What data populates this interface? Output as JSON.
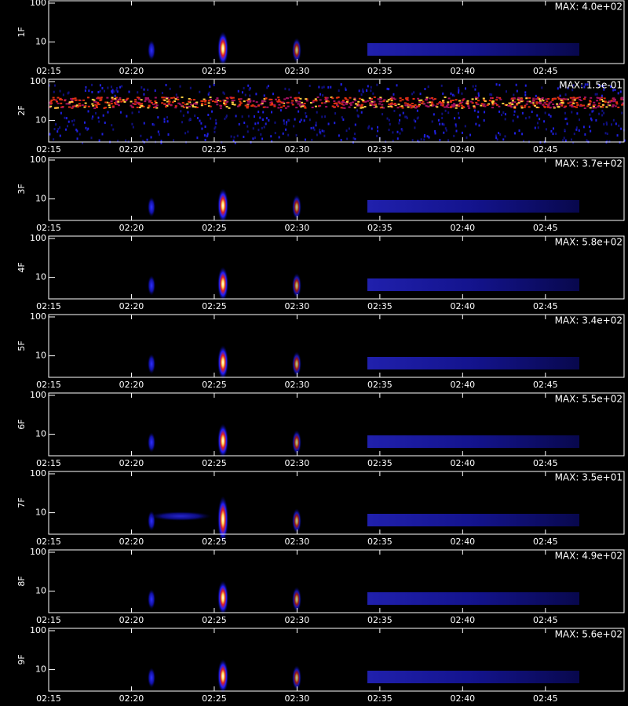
{
  "chart_data": [
    {
      "type": "heatmap",
      "ylabel": "1F",
      "annotation": "MAX: 4.0e+02",
      "log_y": true,
      "xlim": [
        0,
        34.75
      ],
      "ylim": [
        2.8,
        115
      ],
      "yticks": [
        10,
        100
      ],
      "xticks": [
        {
          "value": 0,
          "label": "02:15"
        },
        {
          "value": 5,
          "label": "02:20"
        },
        {
          "value": 10,
          "label": "02:25"
        },
        {
          "value": 15,
          "label": "02:30"
        },
        {
          "value": 20,
          "label": "02:35"
        },
        {
          "value": 25,
          "label": "02:40"
        },
        {
          "value": 30,
          "label": "02:45"
        }
      ]
    },
    {
      "type": "heatmap",
      "ylabel": "2F",
      "annotation": "MAX: 1.5e-01",
      "log_y": true,
      "xlim": [
        0,
        34.75
      ],
      "ylim": [
        2.8,
        115
      ],
      "yticks": [
        10,
        100
      ],
      "xticks": [
        {
          "value": 0,
          "label": "02:15"
        },
        {
          "value": 5,
          "label": "02:20"
        },
        {
          "value": 10,
          "label": "02:25"
        },
        {
          "value": 15,
          "label": "02:30"
        },
        {
          "value": 20,
          "label": "02:35"
        },
        {
          "value": 25,
          "label": "02:40"
        },
        {
          "value": 30,
          "label": "02:45"
        }
      ]
    },
    {
      "type": "heatmap",
      "ylabel": "3F",
      "annotation": "MAX: 3.7e+02",
      "log_y": true,
      "xlim": [
        0,
        34.75
      ],
      "ylim": [
        2.8,
        115
      ],
      "yticks": [
        10,
        100
      ],
      "xticks": [
        {
          "value": 0,
          "label": "02:15"
        },
        {
          "value": 5,
          "label": "02:20"
        },
        {
          "value": 10,
          "label": "02:25"
        },
        {
          "value": 15,
          "label": "02:30"
        },
        {
          "value": 20,
          "label": "02:35"
        },
        {
          "value": 25,
          "label": "02:40"
        },
        {
          "value": 30,
          "label": "02:45"
        }
      ]
    },
    {
      "type": "heatmap",
      "ylabel": "4F",
      "annotation": "MAX: 5.8e+02",
      "log_y": true,
      "xlim": [
        0,
        34.75
      ],
      "ylim": [
        2.8,
        115
      ],
      "yticks": [
        10,
        100
      ],
      "xticks": [
        {
          "value": 0,
          "label": "02:15"
        },
        {
          "value": 5,
          "label": "02:20"
        },
        {
          "value": 10,
          "label": "02:25"
        },
        {
          "value": 15,
          "label": "02:30"
        },
        {
          "value": 20,
          "label": "02:35"
        },
        {
          "value": 25,
          "label": "02:40"
        },
        {
          "value": 30,
          "label": "02:45"
        }
      ]
    },
    {
      "type": "heatmap",
      "ylabel": "5F",
      "annotation": "MAX: 3.4e+02",
      "log_y": true,
      "xlim": [
        0,
        34.75
      ],
      "ylim": [
        2.8,
        115
      ],
      "yticks": [
        10,
        100
      ],
      "xticks": [
        {
          "value": 0,
          "label": "02:15"
        },
        {
          "value": 5,
          "label": "02:20"
        },
        {
          "value": 10,
          "label": "02:25"
        },
        {
          "value": 15,
          "label": "02:30"
        },
        {
          "value": 20,
          "label": "02:35"
        },
        {
          "value": 25,
          "label": "02:40"
        },
        {
          "value": 30,
          "label": "02:45"
        }
      ]
    },
    {
      "type": "heatmap",
      "ylabel": "6F",
      "annotation": "MAX: 5.5e+02",
      "log_y": true,
      "xlim": [
        0,
        34.75
      ],
      "ylim": [
        2.8,
        115
      ],
      "yticks": [
        10,
        100
      ],
      "xticks": [
        {
          "value": 0,
          "label": "02:15"
        },
        {
          "value": 5,
          "label": "02:20"
        },
        {
          "value": 10,
          "label": "02:25"
        },
        {
          "value": 15,
          "label": "02:30"
        },
        {
          "value": 20,
          "label": "02:35"
        },
        {
          "value": 25,
          "label": "02:40"
        },
        {
          "value": 30,
          "label": "02:45"
        }
      ]
    },
    {
      "type": "heatmap",
      "ylabel": "7F",
      "annotation": "MAX: 3.5e+01",
      "log_y": true,
      "xlim": [
        0,
        34.75
      ],
      "ylim": [
        2.8,
        115
      ],
      "yticks": [
        10,
        100
      ],
      "xticks": [
        {
          "value": 0,
          "label": "02:15"
        },
        {
          "value": 5,
          "label": "02:20"
        },
        {
          "value": 10,
          "label": "02:25"
        },
        {
          "value": 15,
          "label": "02:30"
        },
        {
          "value": 20,
          "label": "02:35"
        },
        {
          "value": 25,
          "label": "02:40"
        },
        {
          "value": 30,
          "label": "02:45"
        }
      ]
    },
    {
      "type": "heatmap",
      "ylabel": "8F",
      "annotation": "MAX: 4.9e+02",
      "log_y": true,
      "xlim": [
        0,
        34.75
      ],
      "ylim": [
        2.8,
        115
      ],
      "yticks": [
        10,
        100
      ],
      "xticks": [
        {
          "value": 0,
          "label": "02:15"
        },
        {
          "value": 5,
          "label": "02:20"
        },
        {
          "value": 10,
          "label": "02:25"
        },
        {
          "value": 15,
          "label": "02:30"
        },
        {
          "value": 20,
          "label": "02:35"
        },
        {
          "value": 25,
          "label": "02:40"
        },
        {
          "value": 30,
          "label": "02:45"
        }
      ]
    },
    {
      "type": "heatmap",
      "ylabel": "9F",
      "annotation": "MAX: 5.6e+02",
      "log_y": true,
      "xlim": [
        0,
        34.75
      ],
      "ylim": [
        2.8,
        115
      ],
      "yticks": [
        10,
        100
      ],
      "xticks": [
        {
          "value": 0,
          "label": "02:15"
        },
        {
          "value": 5,
          "label": "02:20"
        },
        {
          "value": 10,
          "label": "02:25"
        },
        {
          "value": 15,
          "label": "02:30"
        },
        {
          "value": 20,
          "label": "02:35"
        },
        {
          "value": 25,
          "label": "02:40"
        },
        {
          "value": 30,
          "label": "02:45"
        }
      ]
    }
  ]
}
